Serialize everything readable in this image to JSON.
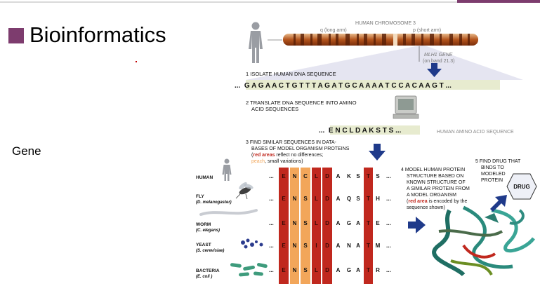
{
  "slide": {
    "title": "Bioinformatics",
    "label": "Gene",
    "accent_color": "#7d3c6e"
  },
  "figure": {
    "chromosome_title": "HUMAN CHROMOSOME 3",
    "q_arm": "q (long arm)",
    "p_arm": "p (short arm)",
    "gene_label_1": "MLH1 GENE",
    "gene_label_2": "(on band 21.3)",
    "step1": "1  ISOLATE HUMAN DNA SEQUENCE",
    "dna_sequence": "...  G A G A A C T G T T T A G A T G C A A A A T C C A C A A G T ...",
    "step2_line1": "2  TRANSLATE DNA SEQUENCE INTO AMINO",
    "step2_line2": "ACID SEQUENCES",
    "amino_sequence": "...  E N C L D A K S T S ...",
    "amino_caption": "HUMAN AMINO ACID SEQUENCE",
    "step3_line1": "3  FIND SIMILAR SEQUENCES IN DATA-",
    "step3_line2": "BASES OF MODEL ORGANISM PROTEINS",
    "step3_red": "red areas",
    "step3_red_rest": " reflect no differences;",
    "step3_peach": "peach",
    "step3_peach_rest": ", small variations)",
    "step4_lines": [
      "4  MODEL HUMAN PROTEIN",
      "STRUCTURE BASED ON",
      "KNOWN STRUCTURE OF",
      "A SIMILAR PROTEIN FROM",
      "A MODEL ORGANISM"
    ],
    "step4_red": "red area",
    "step4_red_rest": " is encoded by the",
    "step4_last": "sequence shown)",
    "step5_lines": [
      "5  FIND DRUG THAT",
      "BINDS TO",
      "MODELED",
      "PROTEIN"
    ],
    "drug": "DRUG",
    "colors": {
      "red": "#c0281e",
      "peach": "#f2a65a",
      "dna_band": "#e7ebcf",
      "arrow": "#1f3a8a"
    }
  },
  "organisms": [
    {
      "name": "HUMAN",
      "sub": "",
      "seq": [
        "E",
        "N",
        "C",
        "L",
        "D",
        "A",
        "K",
        "S",
        "T",
        "S"
      ]
    },
    {
      "name": "FLY",
      "sub": "(D. melanogaster)",
      "seq": [
        "E",
        "N",
        "S",
        "L",
        "D",
        "A",
        "Q",
        "S",
        "T",
        "H"
      ]
    },
    {
      "name": "WORM",
      "sub": "(C. elegans)",
      "seq": [
        "E",
        "N",
        "S",
        "L",
        "D",
        "A",
        "G",
        "A",
        "T",
        "E"
      ]
    },
    {
      "name": "YEAST",
      "sub": "(S. cerevisiae)",
      "seq": [
        "E",
        "N",
        "S",
        "I",
        "D",
        "A",
        "N",
        "A",
        "T",
        "M"
      ]
    },
    {
      "name": "BACTERIA",
      "sub": "(E. coli )",
      "seq": [
        "E",
        "N",
        "S",
        "L",
        "D",
        "A",
        "G",
        "A",
        "T",
        "R"
      ]
    }
  ]
}
